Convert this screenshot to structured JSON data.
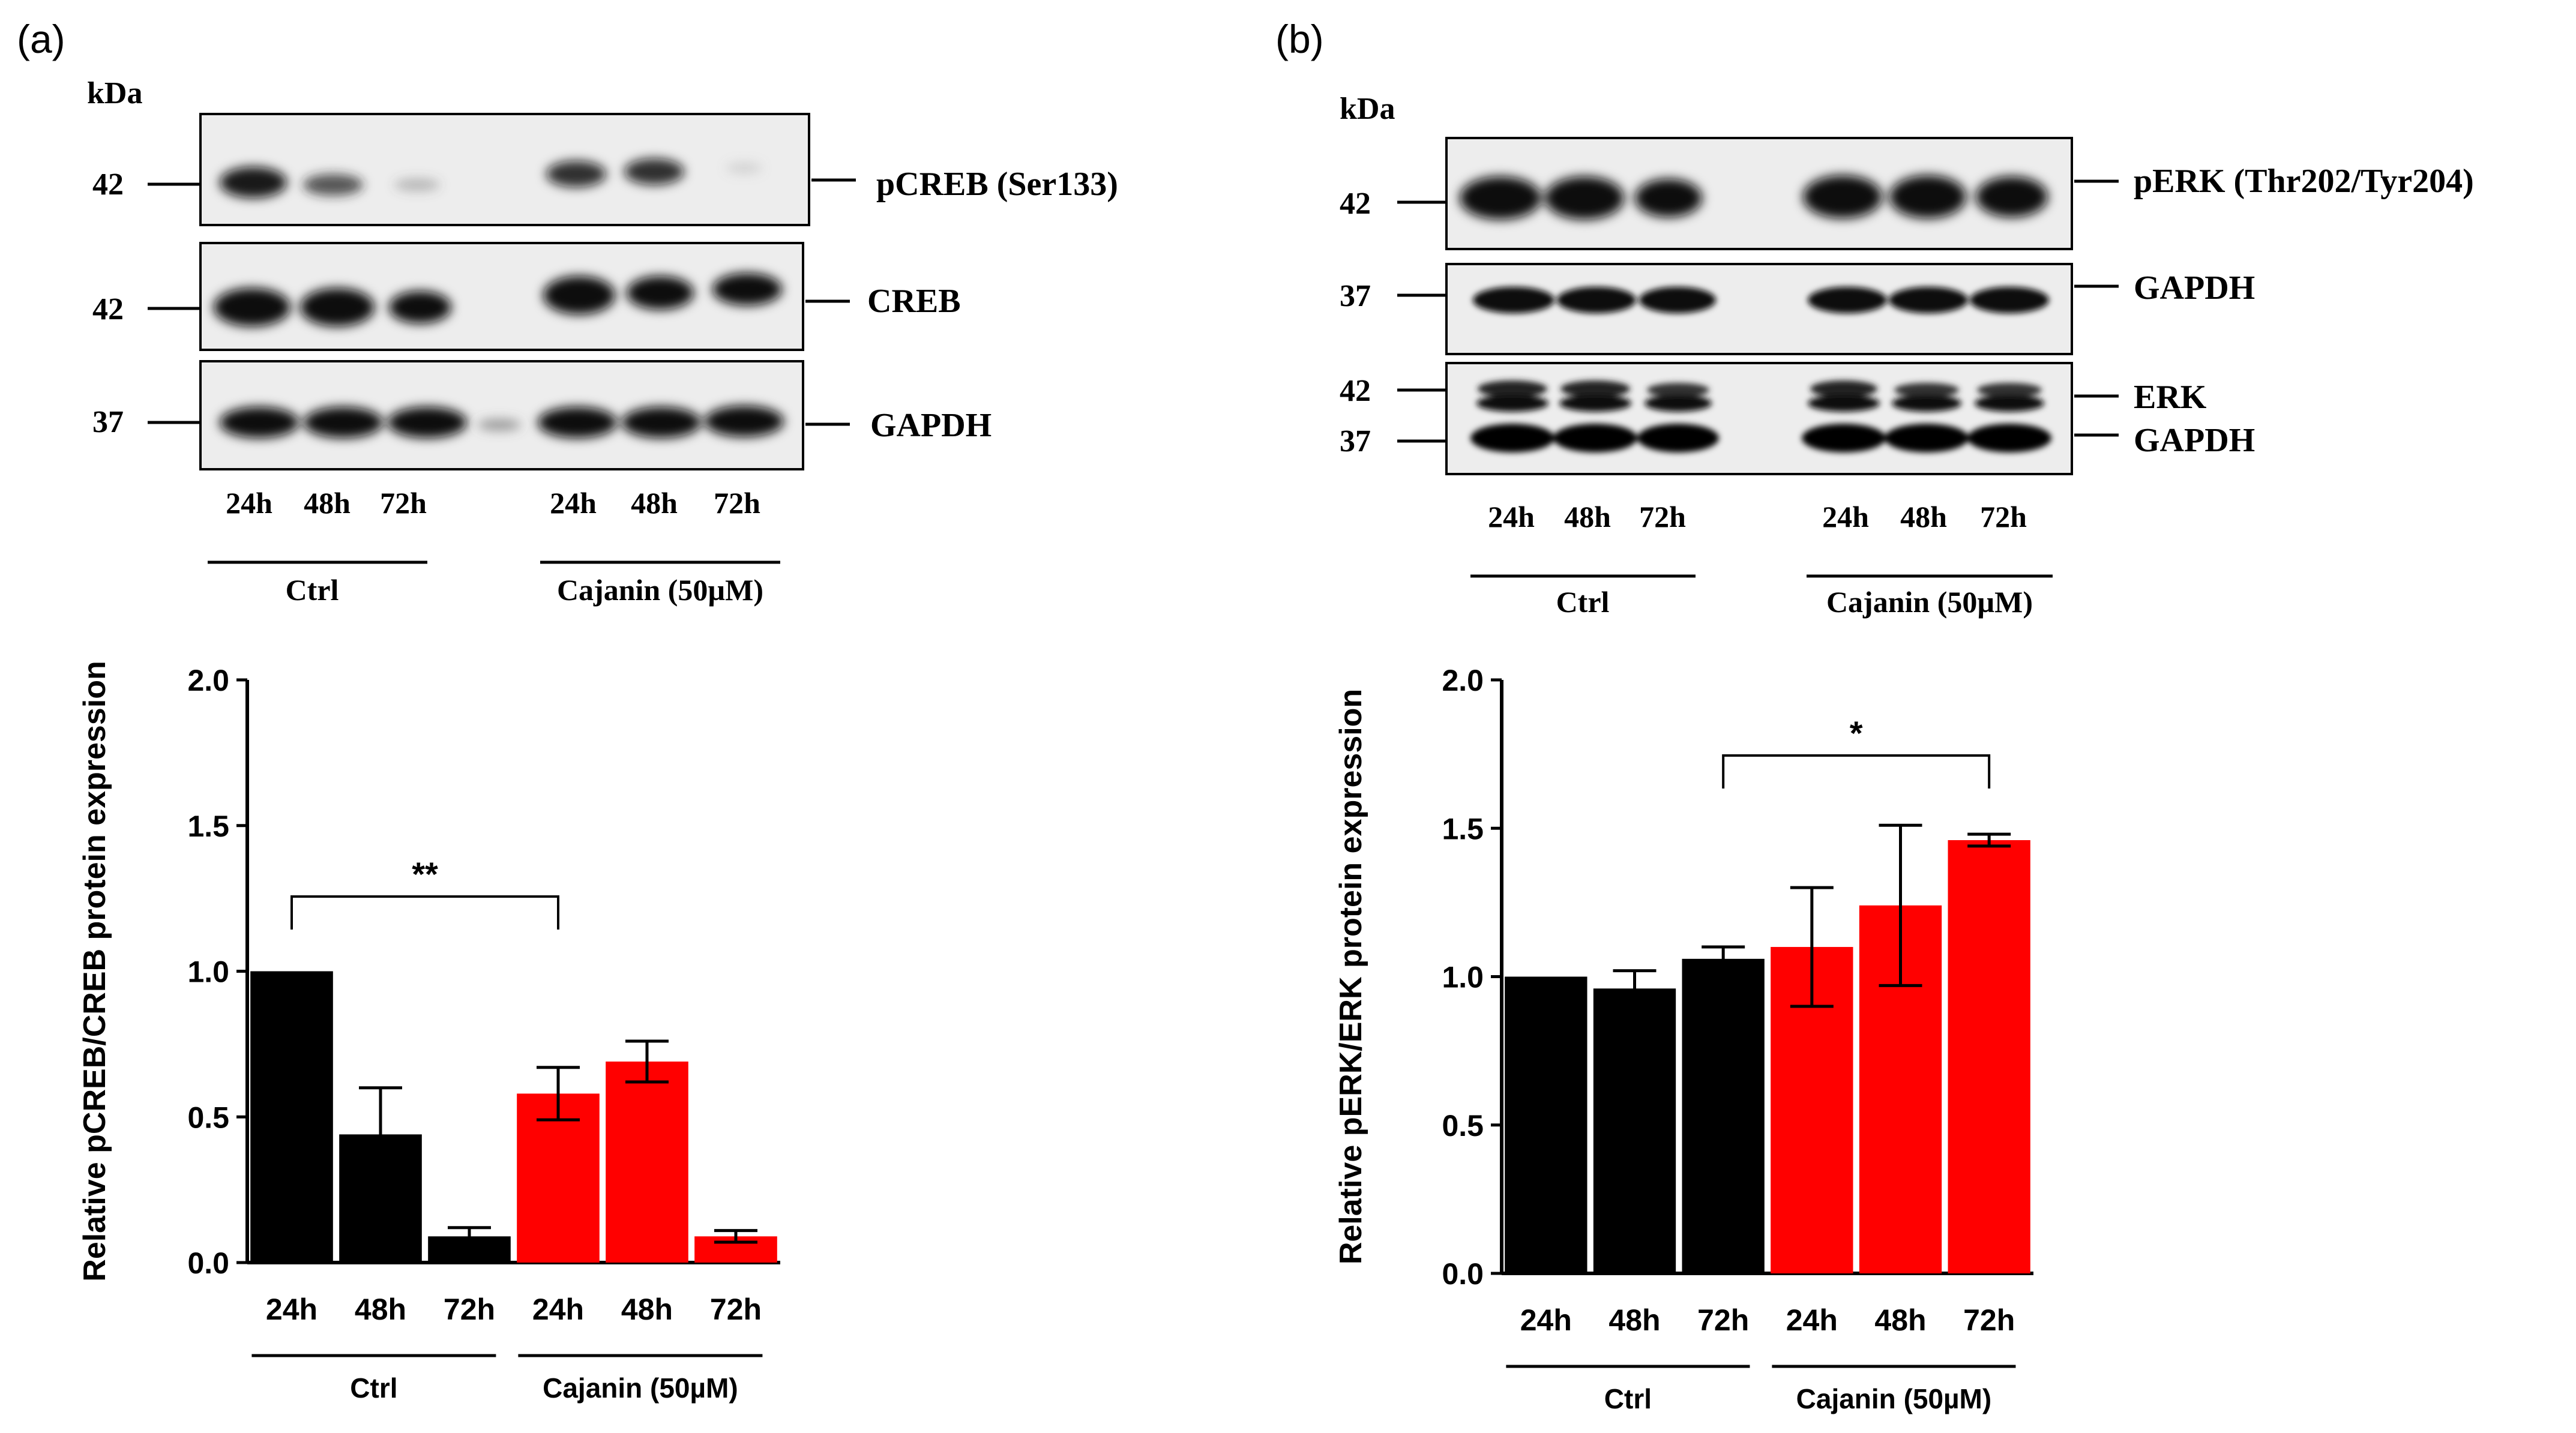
{
  "panels": [
    {
      "label": "(a)",
      "kda_label": "kDa",
      "blots": [
        {
          "name": "pCREB (Ser133)",
          "markers": [
            "42"
          ]
        },
        {
          "name": "CREB",
          "markers": [
            "42"
          ]
        },
        {
          "name": "GAPDH",
          "markers": [
            "37"
          ]
        }
      ],
      "blot_lanes": [
        "24h",
        "48h",
        "72h",
        "24h",
        "48h",
        "72h"
      ],
      "groups": [
        "Ctrl",
        "Cajanin (50µM)"
      ]
    },
    {
      "label": "(b)",
      "kda_label": "kDa",
      "blots": [
        {
          "name": "pERK (Thr202/Tyr204)",
          "markers": [
            "42"
          ]
        },
        {
          "name": "GAPDH",
          "markers": [
            "37"
          ]
        },
        {
          "name": "ERK",
          "name2": "GAPDH",
          "markers": [
            "42",
            "37"
          ]
        }
      ],
      "blot_lanes": [
        "24h",
        "48h",
        "72h",
        "24h",
        "48h",
        "72h"
      ],
      "groups": [
        "Ctrl",
        "Cajanin (50µM)"
      ]
    }
  ],
  "chart_data": [
    {
      "type": "bar",
      "categories": [
        "24h",
        "48h",
        "72h",
        "24h",
        "48h",
        "72h"
      ],
      "groups": [
        "Ctrl",
        "Cajanin (50µM)"
      ],
      "values": [
        1.0,
        0.44,
        0.09,
        0.58,
        0.69,
        0.09
      ],
      "errors": [
        0.0,
        0.16,
        0.03,
        0.09,
        0.07,
        0.02
      ],
      "colors": [
        "#000000",
        "#000000",
        "#000000",
        "#ff0000",
        "#ff0000",
        "#ff0000"
      ],
      "ylabel": "Relative pCREB/CREB protein expression",
      "xlabel": "",
      "ylim": [
        0,
        2.0
      ],
      "yticks": [
        "0.0",
        "0.5",
        "1.0",
        "1.5",
        "2.0"
      ],
      "significance": {
        "from": 0,
        "to": 3,
        "label": "**"
      }
    },
    {
      "type": "bar",
      "categories": [
        "24h",
        "48h",
        "72h",
        "24h",
        "48h",
        "72h"
      ],
      "groups": [
        "Ctrl",
        "Cajanin (50µM)"
      ],
      "values": [
        1.0,
        0.96,
        1.06,
        1.1,
        1.24,
        1.46
      ],
      "errors": [
        0.0,
        0.06,
        0.04,
        0.2,
        0.27,
        0.02
      ],
      "colors": [
        "#000000",
        "#000000",
        "#000000",
        "#ff0000",
        "#ff0000",
        "#ff0000"
      ],
      "ylabel": "Relative pERK/ERK protein expression",
      "xlabel": "",
      "ylim": [
        0,
        2.0
      ],
      "yticks": [
        "0.0",
        "0.5",
        "1.0",
        "1.5",
        "2.0"
      ],
      "significance": {
        "from": 2,
        "to": 5,
        "label": "*"
      }
    }
  ]
}
